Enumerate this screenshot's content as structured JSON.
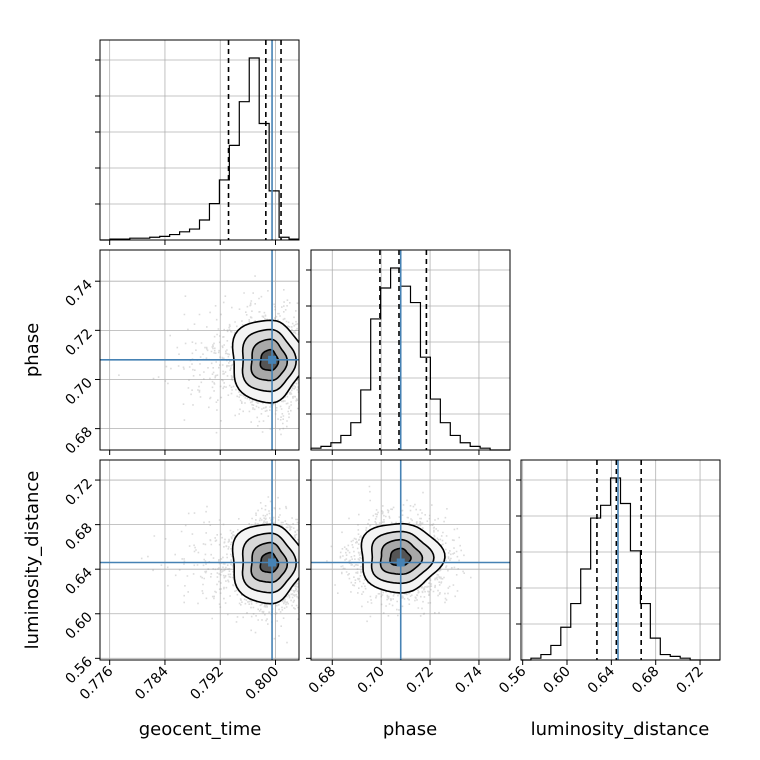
{
  "chart_data": {
    "type": "corner",
    "parameters": [
      "geocent_time",
      "phase",
      "luminosity_distance"
    ],
    "axis_labels": {
      "geocent_time": "geocent_time",
      "phase": "phase",
      "luminosity_distance": "luminosity_distance"
    },
    "ranges": {
      "geocent_time": [
        0.7746,
        0.8034
      ],
      "phase": [
        0.6713,
        0.7527
      ],
      "luminosity_distance": [
        0.5585,
        0.738
      ]
    },
    "ticks": {
      "geocent_time": [
        "0.776",
        "0.784",
        "0.792",
        "0.800"
      ],
      "phase": [
        "0.68",
        "0.70",
        "0.72",
        "0.74"
      ],
      "luminosity_distance": [
        "0.56",
        "0.60",
        "0.64",
        "0.68",
        "0.72"
      ]
    },
    "y_ticks": {
      "phase": [
        "0.68",
        "0.70",
        "0.72",
        "0.74"
      ],
      "luminosity_distance": [
        "0.56",
        "0.60",
        "0.64",
        "0.68",
        "0.72"
      ]
    },
    "truths": {
      "geocent_time": 0.7995,
      "phase": 0.708,
      "luminosity_distance": 0.646
    },
    "quantiles_16_50_84": {
      "geocent_time": [
        0.7932,
        0.7986,
        0.8008
      ],
      "phase": [
        0.6995,
        0.7073,
        0.7185
      ],
      "luminosity_distance": [
        0.627,
        0.6445,
        0.6669
      ]
    },
    "histograms": {
      "geocent_time": {
        "edges": [
          0.7746,
          0.77604,
          0.77748,
          0.77892,
          0.78036,
          0.7818,
          0.78324,
          0.78468,
          0.78612,
          0.78756,
          0.789,
          0.79044,
          0.79188,
          0.79332,
          0.79476,
          0.7962,
          0.79764,
          0.79908,
          0.80052,
          0.80196,
          0.8034
        ],
        "counts": [
          0,
          0.005,
          0.005,
          0.01,
          0.01,
          0.015,
          0.02,
          0.03,
          0.045,
          0.06,
          0.11,
          0.2,
          0.33,
          0.52,
          0.76,
          1.0,
          0.64,
          0.27,
          0.015,
          0.005
        ]
      },
      "phase": {
        "edges": [
          0.6713,
          0.67537,
          0.67944,
          0.68351,
          0.68758,
          0.69165,
          0.69572,
          0.69979,
          0.70386,
          0.70793,
          0.712,
          0.71607,
          0.72014,
          0.72421,
          0.72828,
          0.73235,
          0.73642,
          0.74049,
          0.74456,
          0.74863,
          0.7527
        ],
        "counts": [
          0.01,
          0.02,
          0.04,
          0.08,
          0.15,
          0.33,
          0.72,
          0.89,
          1.0,
          0.9,
          0.81,
          0.51,
          0.28,
          0.15,
          0.08,
          0.04,
          0.02,
          0.01,
          0.0,
          0.0
        ]
      },
      "luminosity_distance": {
        "edges": [
          0.5585,
          0.567475,
          0.57645,
          0.585425,
          0.5944,
          0.603375,
          0.61235,
          0.621325,
          0.6303,
          0.639275,
          0.64825,
          0.657225,
          0.6662,
          0.675175,
          0.68415,
          0.693125,
          0.7021,
          0.711075,
          0.72005,
          0.729025,
          0.738
        ],
        "counts": [
          0.0,
          0.01,
          0.03,
          0.08,
          0.18,
          0.31,
          0.5,
          0.78,
          0.85,
          1.0,
          0.86,
          0.6,
          0.31,
          0.12,
          0.03,
          0.02,
          0.01,
          0.0,
          0.0,
          0.0
        ]
      }
    },
    "pairs": [
      {
        "x": "geocent_time",
        "y": "phase",
        "center": [
          0.7992,
          0.7077
        ],
        "sigma": [
          0.0023,
          0.0084
        ]
      },
      {
        "x": "geocent_time",
        "y": "luminosity_distance",
        "center": [
          0.7992,
          0.6455
        ],
        "sigma": [
          0.0023,
          0.0178
        ]
      },
      {
        "x": "phase",
        "y": "luminosity_distance",
        "center": [
          0.7077,
          0.6505
        ],
        "sigma": [
          0.0084,
          0.0155
        ]
      }
    ],
    "styles": {
      "truth_color": "#4682b4",
      "hist_color": "#000000",
      "quantile_color": "#000000",
      "grid_color": "#b0b0b0",
      "point_color": "#9a9a9a"
    },
    "grid": true
  }
}
